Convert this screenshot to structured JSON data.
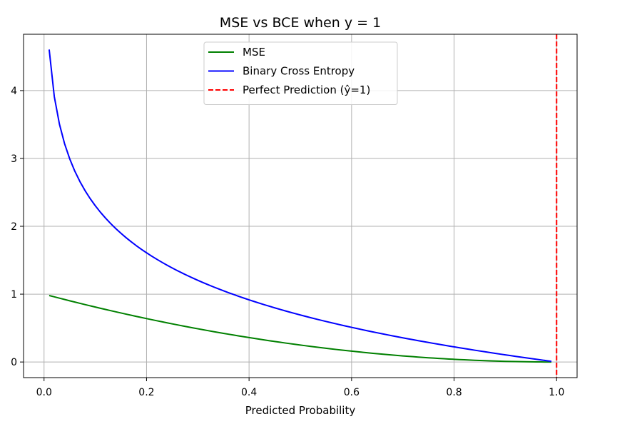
{
  "chart_data": {
    "type": "line",
    "title": "MSE vs BCE when y = 1",
    "xlabel": "Predicted Probability",
    "ylabel": "",
    "xlim": [
      -0.04,
      1.04
    ],
    "ylim": [
      -0.23,
      4.83
    ],
    "x_ticks": [
      0.0,
      0.2,
      0.4,
      0.6,
      0.8,
      1.0
    ],
    "x_tick_labels": [
      "0.0",
      "0.2",
      "0.4",
      "0.6",
      "0.8",
      "1.0"
    ],
    "y_ticks": [
      0,
      1,
      2,
      3,
      4
    ],
    "y_tick_labels": [
      "0",
      "1",
      "2",
      "3",
      "4"
    ],
    "grid": true,
    "legend_position": "top-center",
    "series": [
      {
        "name": "MSE",
        "color": "#008000",
        "style": "solid",
        "formula": "(1 - x)^2",
        "x_range": [
          0.01,
          0.99
        ],
        "points": 99
      },
      {
        "name": "Binary Cross Entropy",
        "color": "#0000ff",
        "style": "solid",
        "formula": "-ln(x)",
        "x_range": [
          0.01,
          0.99
        ],
        "points": 99
      }
    ],
    "vlines": [
      {
        "name": "Perfect Prediction (ŷ=1)",
        "x": 1.0,
        "color": "#ff0000",
        "style": "dashed"
      }
    ]
  }
}
